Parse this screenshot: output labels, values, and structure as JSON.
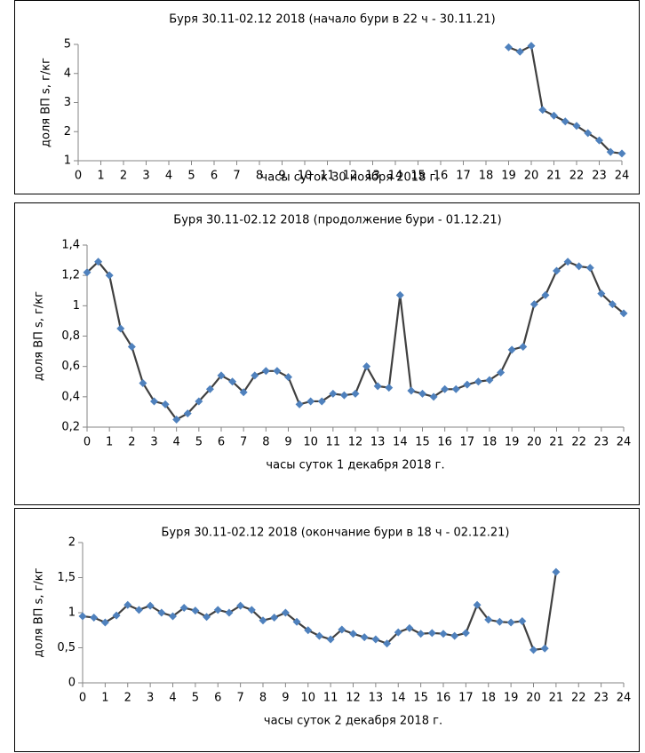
{
  "chart_data": [
    {
      "type": "line",
      "title": "Буря 30.11-02.12 2018 (начало бури в 22 ч - 30.11.21)",
      "x_label": "часы суток 30 ноября 2018 г.",
      "y_label": "доля ВП s, г/кг",
      "x": [
        19,
        19.5,
        20,
        20.5,
        21,
        21.5,
        22,
        22.5,
        23,
        23.5,
        24
      ],
      "values": [
        4.9,
        4.75,
        4.95,
        2.75,
        2.55,
        2.35,
        2.2,
        1.95,
        1.7,
        1.3,
        1.25
      ],
      "color": "#4f81bd",
      "line_color": "#404040",
      "xlim": [
        0,
        24
      ],
      "xticks": [
        0,
        1,
        2,
        3,
        4,
        5,
        6,
        7,
        8,
        9,
        10,
        11,
        12,
        13,
        14,
        15,
        16,
        17,
        18,
        19,
        20,
        21,
        22,
        23,
        24
      ],
      "ylim": [
        1,
        5
      ],
      "yticks": [
        1,
        2,
        3,
        4,
        5
      ]
    },
    {
      "type": "line",
      "title": "Буря 30.11-02.12 2018 (продолжение  бури - 01.12.21)",
      "x_label": "часы суток 1 декабря 2018 г.",
      "y_label": "доля ВП s, г/кг",
      "x": [
        0,
        0.5,
        1,
        1.5,
        2,
        2.5,
        3,
        3.5,
        4,
        4.5,
        5,
        5.5,
        6,
        6.5,
        7,
        7.5,
        8,
        8.5,
        9,
        9.5,
        10,
        10.5,
        11,
        11.5,
        12,
        12.5,
        13,
        13.5,
        14,
        14.5,
        15,
        15.5,
        16,
        16.5,
        17,
        17.5,
        18,
        18.5,
        19,
        19.5,
        20,
        20.5,
        21,
        21.5,
        22,
        22.5,
        23,
        23.5,
        24
      ],
      "values": [
        1.22,
        1.29,
        1.2,
        0.85,
        0.73,
        0.49,
        0.37,
        0.35,
        0.25,
        0.29,
        0.37,
        0.45,
        0.54,
        0.5,
        0.43,
        0.54,
        0.57,
        0.57,
        0.53,
        0.35,
        0.37,
        0.37,
        0.42,
        0.41,
        0.42,
        0.6,
        0.47,
        0.46,
        1.07,
        0.44,
        0.42,
        0.4,
        0.45,
        0.45,
        0.48,
        0.5,
        0.51,
        0.56,
        0.71,
        0.73,
        1.01,
        1.07,
        1.23,
        1.29,
        1.26,
        1.25,
        1.08,
        1.01,
        0.95
      ],
      "color": "#4f81bd",
      "line_color": "#404040",
      "xlim": [
        0,
        24
      ],
      "xticks": [
        0,
        1,
        2,
        3,
        4,
        5,
        6,
        7,
        8,
        9,
        10,
        11,
        12,
        13,
        14,
        15,
        16,
        17,
        18,
        19,
        20,
        21,
        22,
        23,
        24
      ],
      "ylim": [
        0.2,
        1.4
      ],
      "yticks": [
        {
          "value": 0.2,
          "label": "0,2"
        },
        {
          "value": 0.4,
          "label": "0,4"
        },
        {
          "value": 0.6,
          "label": "0,6"
        },
        {
          "value": 0.8,
          "label": "0,8"
        },
        1,
        {
          "value": 1.2,
          "label": "1,2"
        },
        {
          "value": 1.4,
          "label": "1,4"
        }
      ]
    },
    {
      "type": "line",
      "title": "Буря 30.11-02.12 2018 (окончание  бури в 18 ч - 02.12.21)",
      "x_label": "часы суток 2 декабря 2018 г.",
      "y_label": "доля ВП s, г/кг",
      "x": [
        0,
        0.5,
        1,
        1.5,
        2,
        2.5,
        3,
        3.5,
        4,
        4.5,
        5,
        5.5,
        6,
        6.5,
        7,
        7.5,
        8,
        8.5,
        9,
        9.5,
        10,
        10.5,
        11,
        11.5,
        12,
        12.5,
        13,
        13.5,
        14,
        14.5,
        15,
        15.5,
        16,
        16.5,
        17,
        17.5,
        18,
        18.5,
        19,
        19.5,
        20,
        20.5,
        21
      ],
      "values": [
        0.95,
        0.93,
        0.86,
        0.96,
        1.11,
        1.04,
        1.1,
        1.0,
        0.95,
        1.07,
        1.03,
        0.94,
        1.04,
        1.0,
        1.1,
        1.04,
        0.89,
        0.93,
        1.0,
        0.87,
        0.75,
        0.67,
        0.62,
        0.76,
        0.7,
        0.65,
        0.62,
        0.56,
        0.72,
        0.78,
        0.7,
        0.71,
        0.7,
        0.67,
        0.71,
        1.11,
        0.9,
        0.87,
        0.86,
        0.88,
        0.47,
        0.49,
        1.58
      ],
      "color": "#4f81bd",
      "line_color": "#404040",
      "xlim": [
        0,
        24
      ],
      "xticks": [
        0,
        1,
        2,
        3,
        4,
        5,
        6,
        7,
        8,
        9,
        10,
        11,
        12,
        13,
        14,
        15,
        16,
        17,
        18,
        19,
        20,
        21,
        22,
        23,
        24
      ],
      "ylim": [
        0,
        2
      ],
      "yticks": [
        0,
        {
          "value": 0.5,
          "label": "0,5"
        },
        1,
        {
          "value": 1.5,
          "label": "1,5"
        },
        2
      ]
    }
  ]
}
